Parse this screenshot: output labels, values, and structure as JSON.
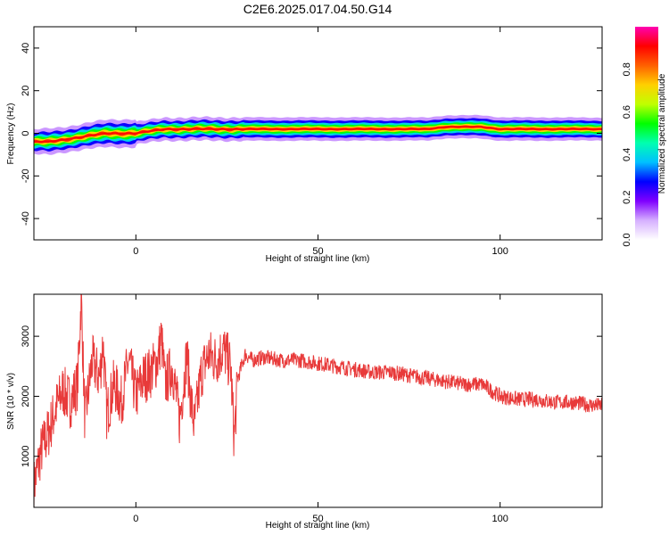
{
  "title": "C2E6.2025.017.04.50.G14",
  "chart_data": [
    {
      "type": "heatmap",
      "xlabel": "Height of straight line (km)",
      "ylabel": "Frequency (Hz)",
      "xlim": [
        -28,
        128
      ],
      "ylim": [
        -50,
        50
      ],
      "xticks": [
        0,
        50,
        100
      ],
      "yticks": [
        -40,
        -20,
        0,
        20,
        40
      ],
      "xtick_labels": [
        "0",
        "50",
        "100"
      ],
      "ytick_labels": [
        "-40",
        "-20",
        "0",
        "20",
        "40"
      ],
      "ridge": {
        "x": [
          -28,
          -24,
          -20,
          -16,
          -12,
          -8,
          -4,
          0,
          4,
          8,
          12,
          20,
          30,
          40,
          60,
          80,
          85,
          90,
          95,
          100,
          110,
          120,
          128
        ],
        "freq": [
          -4,
          -4,
          -3,
          -2,
          -1,
          0,
          0,
          0,
          1,
          2,
          2,
          2,
          2,
          2,
          2,
          2,
          3,
          3,
          3,
          2,
          2,
          2,
          2
        ],
        "amplitude": [
          0.5,
          0.7,
          0.6,
          0.6,
          0.7,
          0.8,
          0.85,
          0.9,
          0.9,
          0.95,
          0.95,
          1.0,
          1.0,
          1.0,
          1.0,
          0.95,
          0.95,
          0.95,
          1.0,
          1.0,
          1.0,
          0.95,
          0.9
        ]
      },
      "colorbar": {
        "label": "Normalized spectral amplitude",
        "range": [
          0,
          1
        ],
        "ticks": [
          0.0,
          0.2,
          0.4,
          0.6,
          0.8
        ],
        "tick_labels": [
          "0.0",
          "0.2",
          "0.4",
          "0.6",
          "0.8"
        ],
        "colors": [
          "#ffffff",
          "#d6b0ff",
          "#8000ff",
          "#0000ff",
          "#00c0ff",
          "#00ffb0",
          "#00ff00",
          "#c0ff00",
          "#ffd000",
          "#ff6000",
          "#ff0000",
          "#ff00b0"
        ]
      },
      "grid": false
    },
    {
      "type": "line",
      "xlabel": "Height of straight line (km)",
      "ylabel": "SNR (10 * v/v)",
      "xlim": [
        -28,
        128
      ],
      "ylim": [
        150,
        3700
      ],
      "xticks": [
        0,
        50,
        100
      ],
      "yticks": [
        1000,
        2000,
        3000
      ],
      "xtick_labels": [
        "0",
        "50",
        "100"
      ],
      "ytick_labels": [
        "1000",
        "2000",
        "3000"
      ],
      "color": "#e83a3a",
      "x": [
        -28,
        -26,
        -24,
        -22,
        -20,
        -18,
        -16,
        -15,
        -14,
        -12,
        -10,
        -9,
        -8,
        -6,
        -4,
        -2,
        0,
        2,
        4,
        6,
        7,
        8,
        10,
        12,
        14,
        15,
        16,
        18,
        20,
        22,
        24,
        26,
        27,
        28,
        30,
        32,
        35,
        40,
        45,
        50,
        55,
        60,
        65,
        70,
        75,
        80,
        85,
        90,
        95,
        100,
        105,
        110,
        115,
        120,
        125,
        128
      ],
      "y": [
        500,
        1100,
        1400,
        1800,
        2100,
        1900,
        2200,
        3700,
        1600,
        2600,
        2300,
        2900,
        1700,
        2200,
        1900,
        2600,
        2000,
        2300,
        2400,
        2600,
        3000,
        2200,
        2500,
        1600,
        2700,
        2000,
        1500,
        2400,
        2700,
        2600,
        2800,
        2500,
        1300,
        2300,
        2700,
        2600,
        2650,
        2600,
        2600,
        2550,
        2500,
        2450,
        2400,
        2400,
        2350,
        2300,
        2250,
        2200,
        2200,
        2000,
        1950,
        1950,
        1900,
        1900,
        1850,
        1850
      ],
      "grid": false
    }
  ]
}
